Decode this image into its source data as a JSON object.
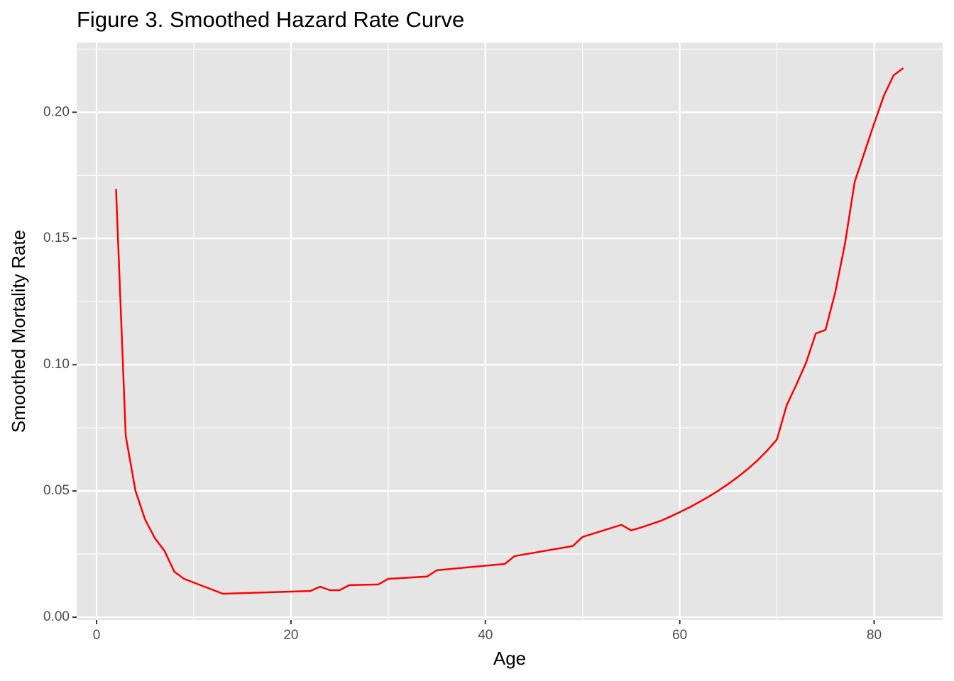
{
  "chart_data": {
    "type": "line",
    "title": "Figure 3. Smoothed Hazard Rate Curve",
    "xlabel": "Age",
    "ylabel": "Smoothed Mortality Rate",
    "x": [
      2,
      3,
      4,
      5,
      6,
      7,
      8,
      9,
      13,
      22,
      23,
      24,
      25,
      26,
      29,
      30,
      34,
      35,
      42,
      43,
      49,
      50,
      54,
      55,
      56,
      57,
      58,
      59,
      60,
      61,
      62,
      63,
      64,
      65,
      66,
      67,
      68,
      69,
      70,
      71,
      72,
      73,
      74,
      75,
      76,
      77,
      78,
      79,
      80,
      81,
      82,
      83
    ],
    "series": [
      {
        "name": "Smoothed Mortality Rate",
        "color": "#ff0000",
        "values": [
          0.1696,
          0.0718,
          0.0501,
          0.0386,
          0.0313,
          0.0262,
          0.018,
          0.0152,
          0.0093,
          0.0104,
          0.0121,
          0.0107,
          0.0107,
          0.0127,
          0.013,
          0.0152,
          0.0161,
          0.0186,
          0.0211,
          0.0242,
          0.0282,
          0.0318,
          0.0366,
          0.0344,
          0.0355,
          0.0368,
          0.0381,
          0.0398,
          0.0416,
          0.0435,
          0.0456,
          0.0478,
          0.0502,
          0.0528,
          0.0556,
          0.0587,
          0.0621,
          0.066,
          0.0704,
          0.0839,
          0.0921,
          0.1008,
          0.1124,
          0.1138,
          0.1287,
          0.1479,
          0.1724,
          0.184,
          0.1955,
          0.2065,
          0.2146,
          0.2175
        ]
      }
    ],
    "xlim": [
      -2.05,
      87.05
    ],
    "xticks": [
      0,
      20,
      40,
      60,
      80
    ],
    "ylim": [
      -0.0011,
      0.2276
    ],
    "yticks": [
      {
        "value": 0,
        "label": "0.00"
      },
      {
        "value": 0.05,
        "label": "0.05"
      },
      {
        "value": 0.1,
        "label": "0.10"
      },
      {
        "value": 0.15,
        "label": "0.15"
      },
      {
        "value": 0.2,
        "label": "0.20"
      }
    ],
    "grid": true
  }
}
